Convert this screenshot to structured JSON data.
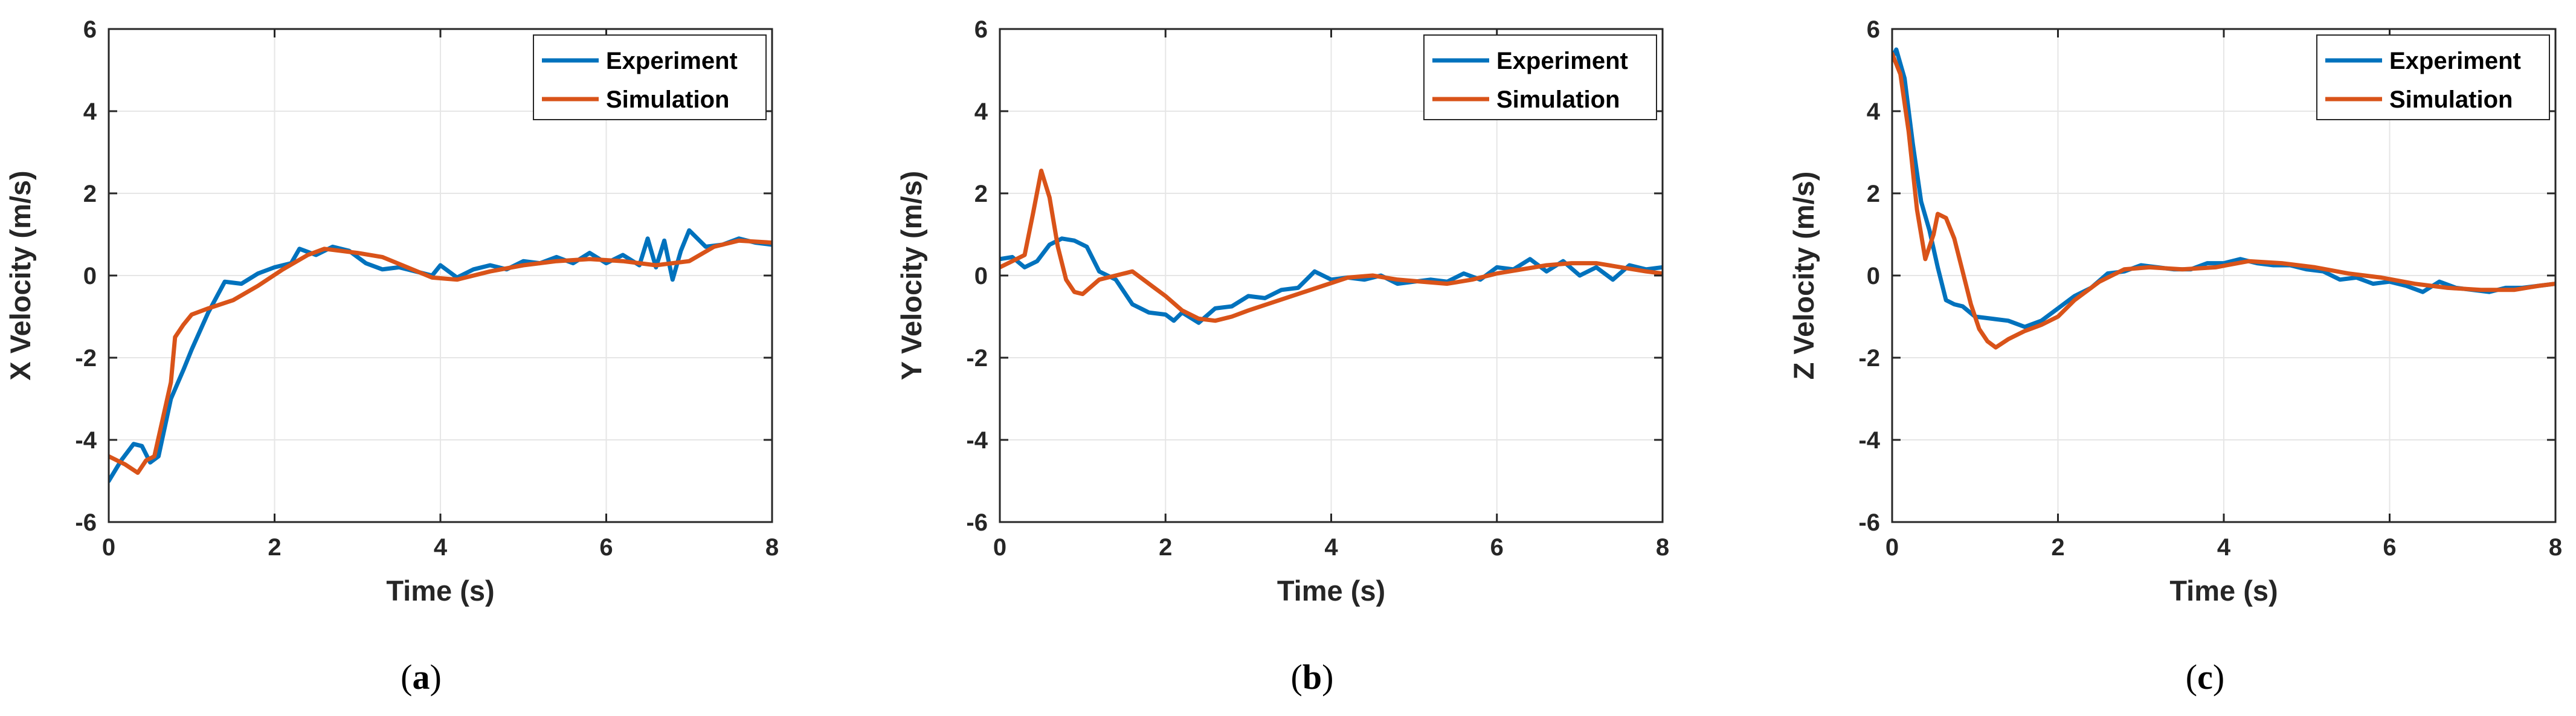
{
  "figure": {
    "colors": {
      "experiment": "#0072BD",
      "simulation": "#D95319",
      "grid": "#e6e6e6",
      "axis": "#262626"
    }
  },
  "chart_data": [
    {
      "type": "line",
      "panel": "a",
      "caption_letter": "a",
      "xlabel": "Time (s)",
      "ylabel": "X Velocity (m/s)",
      "xlim": [
        0,
        8
      ],
      "ylim": [
        -6,
        6
      ],
      "xticks": [
        0,
        2,
        4,
        6,
        8
      ],
      "yticks": [
        -6,
        -4,
        -2,
        0,
        2,
        4,
        6
      ],
      "grid": true,
      "legend_position": "top-right",
      "series": [
        {
          "name": "Experiment",
          "color": "#0072BD",
          "x": [
            0,
            0.15,
            0.3,
            0.4,
            0.5,
            0.6,
            0.75,
            0.9,
            1.0,
            1.2,
            1.4,
            1.6,
            1.8,
            2.0,
            2.2,
            2.3,
            2.5,
            2.7,
            2.9,
            3.1,
            3.3,
            3.5,
            3.7,
            3.9,
            4.0,
            4.2,
            4.4,
            4.6,
            4.8,
            5.0,
            5.2,
            5.4,
            5.6,
            5.8,
            6.0,
            6.2,
            6.4,
            6.5,
            6.6,
            6.7,
            6.8,
            6.9,
            7.0,
            7.2,
            7.4,
            7.6,
            7.8,
            8.0
          ],
          "values": [
            -5.0,
            -4.5,
            -4.1,
            -4.15,
            -4.55,
            -4.4,
            -3.0,
            -2.3,
            -1.8,
            -0.9,
            -0.15,
            -0.2,
            0.05,
            0.2,
            0.3,
            0.65,
            0.5,
            0.7,
            0.6,
            0.3,
            0.15,
            0.2,
            0.1,
            0.0,
            0.25,
            -0.05,
            0.15,
            0.25,
            0.15,
            0.35,
            0.3,
            0.45,
            0.3,
            0.55,
            0.3,
            0.5,
            0.25,
            0.9,
            0.2,
            0.85,
            -0.1,
            0.6,
            1.1,
            0.7,
            0.75,
            0.9,
            0.8,
            0.75
          ]
        },
        {
          "name": "Simulation",
          "color": "#D95319",
          "x": [
            0,
            0.2,
            0.35,
            0.45,
            0.55,
            0.65,
            0.75,
            0.8,
            0.9,
            1.0,
            1.2,
            1.5,
            1.8,
            2.1,
            2.4,
            2.6,
            2.8,
            3.0,
            3.3,
            3.6,
            3.9,
            4.2,
            4.6,
            5.0,
            5.4,
            5.8,
            6.2,
            6.6,
            7.0,
            7.3,
            7.6,
            8.0
          ],
          "values": [
            -4.4,
            -4.6,
            -4.8,
            -4.5,
            -4.4,
            -3.5,
            -2.6,
            -1.5,
            -1.2,
            -0.95,
            -0.8,
            -0.6,
            -0.25,
            0.15,
            0.5,
            0.65,
            0.6,
            0.55,
            0.45,
            0.2,
            -0.05,
            -0.1,
            0.1,
            0.25,
            0.35,
            0.4,
            0.35,
            0.25,
            0.35,
            0.7,
            0.85,
            0.8
          ]
        }
      ]
    },
    {
      "type": "line",
      "panel": "b",
      "caption_letter": "b",
      "xlabel": "Time (s)",
      "ylabel": "Y Velocity (m/s)",
      "xlim": [
        0,
        8
      ],
      "ylim": [
        -6,
        6
      ],
      "xticks": [
        0,
        2,
        4,
        6,
        8
      ],
      "yticks": [
        -6,
        -4,
        -2,
        0,
        2,
        4,
        6
      ],
      "grid": true,
      "legend_position": "top-right",
      "series": [
        {
          "name": "Experiment",
          "color": "#0072BD",
          "x": [
            0,
            0.15,
            0.3,
            0.45,
            0.6,
            0.75,
            0.9,
            1.05,
            1.2,
            1.4,
            1.6,
            1.8,
            2.0,
            2.1,
            2.2,
            2.4,
            2.6,
            2.8,
            3.0,
            3.2,
            3.4,
            3.6,
            3.8,
            4.0,
            4.2,
            4.4,
            4.6,
            4.8,
            5.0,
            5.2,
            5.4,
            5.6,
            5.8,
            6.0,
            6.2,
            6.4,
            6.6,
            6.8,
            7.0,
            7.2,
            7.4,
            7.6,
            7.8,
            8.0
          ],
          "values": [
            0.4,
            0.45,
            0.2,
            0.35,
            0.75,
            0.9,
            0.85,
            0.7,
            0.1,
            -0.1,
            -0.7,
            -0.9,
            -0.95,
            -1.1,
            -0.9,
            -1.15,
            -0.8,
            -0.75,
            -0.5,
            -0.55,
            -0.35,
            -0.3,
            0.1,
            -0.1,
            -0.05,
            -0.1,
            0.0,
            -0.2,
            -0.15,
            -0.1,
            -0.15,
            0.05,
            -0.1,
            0.2,
            0.15,
            0.4,
            0.1,
            0.35,
            0.0,
            0.2,
            -0.1,
            0.25,
            0.15,
            0.2
          ]
        },
        {
          "name": "Simulation",
          "color": "#D95319",
          "x": [
            0,
            0.15,
            0.3,
            0.4,
            0.5,
            0.6,
            0.7,
            0.8,
            0.9,
            1.0,
            1.2,
            1.4,
            1.6,
            1.8,
            2.0,
            2.2,
            2.4,
            2.6,
            2.8,
            3.0,
            3.3,
            3.6,
            3.9,
            4.2,
            4.5,
            4.8,
            5.1,
            5.4,
            5.7,
            6.0,
            6.3,
            6.6,
            6.9,
            7.2,
            7.5,
            7.8,
            8.0
          ],
          "values": [
            0.2,
            0.35,
            0.5,
            1.5,
            2.55,
            1.9,
            0.7,
            -0.1,
            -0.4,
            -0.45,
            -0.1,
            0.0,
            0.1,
            -0.2,
            -0.5,
            -0.85,
            -1.05,
            -1.1,
            -1.0,
            -0.85,
            -0.65,
            -0.45,
            -0.25,
            -0.05,
            0.0,
            -0.1,
            -0.15,
            -0.2,
            -0.1,
            0.05,
            0.15,
            0.25,
            0.3,
            0.3,
            0.2,
            0.1,
            0.05
          ]
        }
      ]
    },
    {
      "type": "line",
      "panel": "c",
      "caption_letter": "c",
      "xlabel": "Time (s)",
      "ylabel": "Z Velocity (m/s)",
      "xlim": [
        0,
        8
      ],
      "ylim": [
        -6,
        6
      ],
      "xticks": [
        0,
        2,
        4,
        6,
        8
      ],
      "yticks": [
        -6,
        -4,
        -2,
        0,
        2,
        4,
        6
      ],
      "grid": true,
      "legend_position": "top-right",
      "series": [
        {
          "name": "Experiment",
          "color": "#0072BD",
          "x": [
            0,
            0.05,
            0.15,
            0.25,
            0.35,
            0.45,
            0.55,
            0.65,
            0.75,
            0.85,
            1.0,
            1.2,
            1.4,
            1.6,
            1.8,
            2.0,
            2.2,
            2.4,
            2.6,
            2.8,
            3.0,
            3.2,
            3.4,
            3.6,
            3.8,
            4.0,
            4.2,
            4.4,
            4.6,
            4.8,
            5.0,
            5.2,
            5.4,
            5.6,
            5.8,
            6.0,
            6.2,
            6.4,
            6.6,
            6.8,
            7.0,
            7.2,
            7.4,
            7.6,
            7.8,
            8.0
          ],
          "values": [
            5.3,
            5.5,
            4.8,
            3.2,
            1.8,
            1.1,
            0.2,
            -0.6,
            -0.7,
            -0.75,
            -1.0,
            -1.05,
            -1.1,
            -1.25,
            -1.1,
            -0.8,
            -0.5,
            -0.3,
            0.05,
            0.1,
            0.25,
            0.2,
            0.15,
            0.15,
            0.3,
            0.3,
            0.4,
            0.3,
            0.25,
            0.25,
            0.15,
            0.1,
            -0.1,
            -0.05,
            -0.2,
            -0.15,
            -0.25,
            -0.4,
            -0.15,
            -0.3,
            -0.35,
            -0.4,
            -0.3,
            -0.3,
            -0.25,
            -0.2
          ]
        },
        {
          "name": "Simulation",
          "color": "#D95319",
          "x": [
            0,
            0.1,
            0.2,
            0.3,
            0.4,
            0.5,
            0.55,
            0.65,
            0.75,
            0.85,
            0.95,
            1.05,
            1.15,
            1.25,
            1.4,
            1.6,
            1.8,
            2.0,
            2.2,
            2.5,
            2.8,
            3.1,
            3.5,
            3.9,
            4.3,
            4.7,
            5.1,
            5.5,
            5.9,
            6.3,
            6.7,
            7.1,
            7.5,
            7.8,
            8.0
          ],
          "values": [
            5.4,
            4.9,
            3.5,
            1.6,
            0.4,
            1.0,
            1.5,
            1.4,
            0.9,
            0.1,
            -0.7,
            -1.3,
            -1.6,
            -1.75,
            -1.55,
            -1.35,
            -1.2,
            -1.0,
            -0.6,
            -0.15,
            0.15,
            0.2,
            0.15,
            0.2,
            0.35,
            0.3,
            0.2,
            0.05,
            -0.05,
            -0.2,
            -0.3,
            -0.35,
            -0.35,
            -0.25,
            -0.2
          ]
        }
      ]
    }
  ]
}
